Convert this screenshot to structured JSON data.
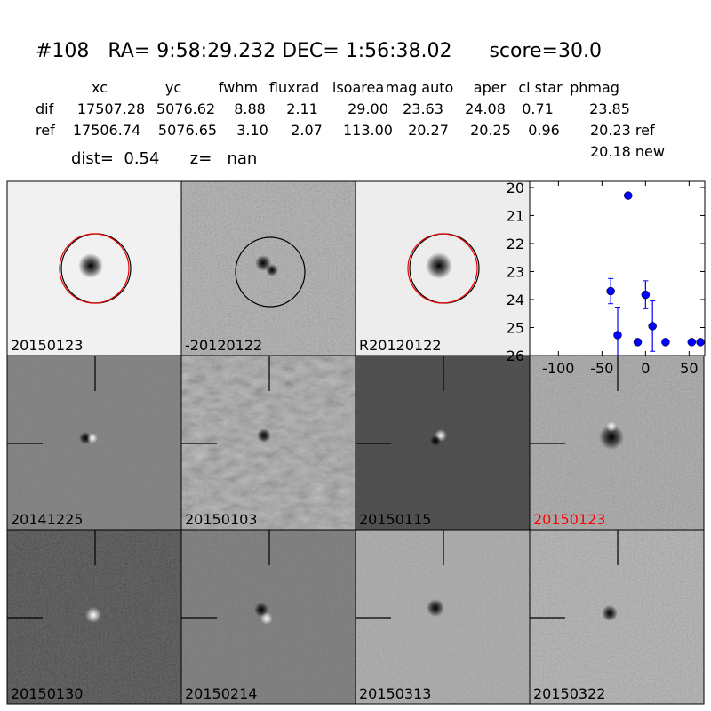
{
  "header": {
    "title": "#108   RA= 9:58:29.232 DEC= 1:56:38.02      score=30.0"
  },
  "table": {
    "columns": [
      "xc",
      "yc",
      "fwhm",
      "fluxrad",
      "isoarea",
      "mag auto",
      "aper",
      "cl star",
      "phmag"
    ],
    "rows": [
      {
        "label": "dif",
        "cells": [
          "17507.28",
          "5076.62",
          "8.88",
          "2.11",
          "29.00",
          "23.63",
          "24.08",
          "0.71",
          "23.85"
        ]
      },
      {
        "label": "ref",
        "cells": [
          "17506.74",
          "5076.65",
          "3.10",
          "2.07",
          "113.00",
          "20.27",
          "20.25",
          "0.96",
          "20.23 ref"
        ]
      }
    ],
    "extra": "20.18 new",
    "dist_line": "dist=  0.54      z=   nan"
  },
  "panels": [
    {
      "label": "20150123"
    },
    {
      "label": "-20120122"
    },
    {
      "label": "R20120122"
    },
    {
      "label": "20141225"
    },
    {
      "label": "20150103"
    },
    {
      "label": "20150115"
    },
    {
      "label": "20150123",
      "color": "#ff0000"
    },
    {
      "label": "20150130"
    },
    {
      "label": "20150214"
    },
    {
      "label": "20150313"
    },
    {
      "label": "20150322"
    }
  ],
  "chart_data": {
    "type": "scatter",
    "color": "#0000ff",
    "x": [
      -40,
      -32,
      -20,
      -9,
      0,
      8,
      23,
      53,
      63
    ],
    "values": [
      23.7,
      25.27,
      20.29,
      25.52,
      23.83,
      24.95,
      25.52,
      25.52,
      25.52
    ],
    "errors": [
      0.45,
      1.0,
      0.05,
      0.1,
      0.5,
      0.9,
      0.1,
      0.1,
      0.1
    ],
    "xlim": [
      -133,
      68
    ],
    "ylim": [
      19.78,
      26
    ],
    "y_inverted": true,
    "xticks": [
      -100,
      -50,
      0,
      50
    ],
    "yticks": [
      20,
      21,
      22,
      23,
      24,
      25,
      26
    ]
  }
}
